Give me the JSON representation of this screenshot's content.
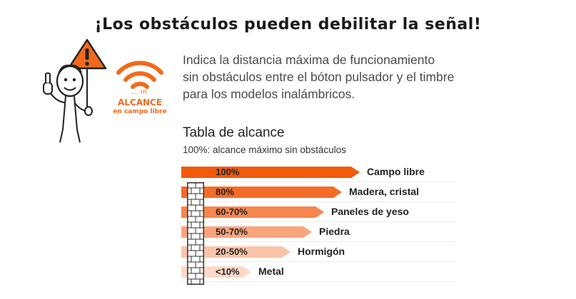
{
  "headline": "¡Los obstáculos pueden debilitar la señal!",
  "badge": {
    "value": ".... m",
    "title": "ALCANCE",
    "subtitle": "en campo libre",
    "icon": "wifi-signal-icon"
  },
  "mascot": {
    "icon": "warning-sign-mascot-icon"
  },
  "intro": {
    "line1": "Indica la distancia máxima de funcionamiento",
    "line2": "sin obstáculos entre el bóton pulsador y el timbre",
    "line3": "para los modelos inalámbricos."
  },
  "table": {
    "title": "Tabla de alcance",
    "subtitle": "100%: alcance máximo sin obstáculos",
    "rows": [
      {
        "percent": "100%",
        "material": "Campo libre",
        "fill": 1.0,
        "color": "#f25a0c"
      },
      {
        "percent": "80%",
        "material": "Madera, cristal",
        "fill": 0.9,
        "color": "#f46c2a"
      },
      {
        "percent": "60-70%",
        "material": "Paneles de yeso",
        "fill": 0.8,
        "color": "#f6864d"
      },
      {
        "percent": "50-70%",
        "material": "Piedra",
        "fill": 0.73,
        "color": "#f8a57c"
      },
      {
        "percent": "20-50%",
        "material": "Hormigón",
        "fill": 0.61,
        "color": "#fac4a8"
      },
      {
        "percent": "<10%",
        "material": "Metal",
        "fill": 0.39,
        "color": "#fcd9c6"
      }
    ]
  },
  "colors": {
    "accent": "#f26a1b",
    "text": "#3a3a3a"
  }
}
